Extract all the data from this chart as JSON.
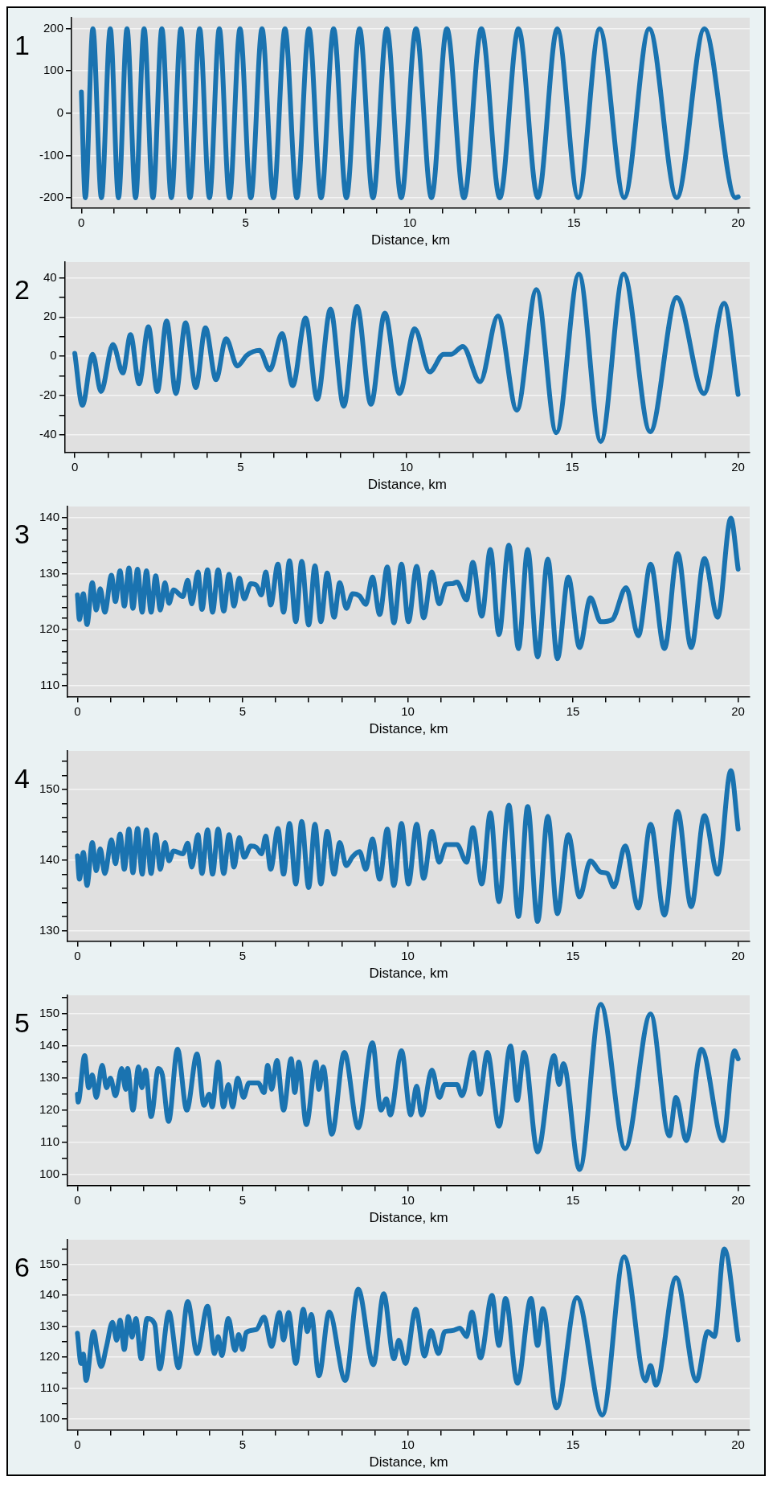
{
  "chart_data": [
    {
      "type": "line",
      "title": "1",
      "xlabel": "Distance, km",
      "grid": "y",
      "marker": "none",
      "line_style": "solid",
      "xlim": [
        -0.3,
        20.35
      ],
      "xticks": [
        0,
        {
          "value": 1,
          "label": null
        },
        {
          "value": 2,
          "label": null
        },
        {
          "value": 3,
          "label": null
        },
        {
          "value": 4,
          "label": null
        },
        5,
        {
          "value": 6,
          "label": null
        },
        {
          "value": 7,
          "label": null
        },
        {
          "value": 8,
          "label": null
        },
        {
          "value": 9,
          "label": null
        },
        10,
        {
          "value": 11,
          "label": null
        },
        {
          "value": 12,
          "label": null
        },
        {
          "value": 13,
          "label": null
        },
        {
          "value": 14,
          "label": null
        },
        15,
        {
          "value": 16,
          "label": null
        },
        {
          "value": 17,
          "label": null
        },
        {
          "value": 18,
          "label": null
        },
        {
          "value": 19,
          "label": null
        },
        20
      ],
      "ylim": [
        -224,
        226
      ],
      "yticks": [
        -200,
        -100,
        0,
        100,
        200
      ],
      "x": [
        0,
        0.12,
        0.35,
        0.61,
        0.88,
        1.13,
        1.39,
        1.65,
        1.91,
        2.18,
        2.45,
        2.74,
        3.03,
        3.31,
        3.6,
        3.9,
        4.2,
        4.51,
        4.83,
        5.16,
        5.5,
        5.85,
        6.2,
        6.56,
        6.93,
        7.3,
        7.68,
        8.07,
        8.47,
        8.88,
        9.3,
        9.74,
        10.19,
        10.66,
        11.13,
        11.65,
        12.18,
        12.74,
        13.31,
        13.9,
        14.49,
        15.13,
        15.78,
        16.53,
        17.29,
        18.13,
        18.97,
        19.92,
        20
      ],
      "series": [
        {
          "color": "#1a73b0",
          "values": [
            50,
            -200,
            200,
            -200,
            200,
            -200,
            200,
            -200,
            200,
            -200,
            200,
            -200,
            200,
            -200,
            200,
            -200,
            200,
            -200,
            200,
            -200,
            200,
            -200,
            200,
            -200,
            200,
            -200,
            200,
            -200,
            200,
            -200,
            200,
            -200,
            200,
            -200,
            200,
            -200,
            200,
            -200,
            200,
            -200,
            200,
            -200,
            200,
            -200,
            200,
            -200,
            200,
            -200,
            -198
          ]
        }
      ]
    },
    {
      "type": "line",
      "title": "2",
      "xlabel": "Distance, km",
      "grid": "y",
      "marker": "none",
      "line_style": "solid",
      "xlim": [
        -0.3,
        20.35
      ],
      "xticks": [
        0,
        {
          "value": 1,
          "label": null
        },
        {
          "value": 2,
          "label": null
        },
        {
          "value": 3,
          "label": null
        },
        {
          "value": 4,
          "label": null
        },
        5,
        {
          "value": 6,
          "label": null
        },
        {
          "value": 7,
          "label": null
        },
        {
          "value": 8,
          "label": null
        },
        {
          "value": 9,
          "label": null
        },
        10,
        {
          "value": 11,
          "label": null
        },
        {
          "value": 12,
          "label": null
        },
        {
          "value": 13,
          "label": null
        },
        {
          "value": 14,
          "label": null
        },
        15,
        {
          "value": 16,
          "label": null
        },
        {
          "value": 17,
          "label": null
        },
        {
          "value": 18,
          "label": null
        },
        {
          "value": 19,
          "label": null
        },
        20
      ],
      "ylim": [
        -49,
        48
      ],
      "yticks": [
        -40,
        {
          "value": -30,
          "label": null
        },
        -20,
        {
          "value": -10,
          "label": null
        },
        0,
        {
          "value": 10,
          "label": null
        },
        20,
        {
          "value": 30,
          "label": null
        },
        40
      ],
      "x": [
        0,
        0.23,
        0.54,
        0.79,
        1.15,
        1.45,
        1.68,
        1.94,
        2.22,
        2.49,
        2.77,
        3.05,
        3.34,
        3.65,
        3.94,
        4.26,
        4.56,
        4.9,
        5.19,
        5.57,
        5.88,
        6.25,
        6.57,
        6.96,
        7.31,
        7.71,
        8.11,
        8.51,
        8.93,
        9.35,
        9.79,
        10.25,
        10.7,
        11.12,
        11.35,
        11.7,
        12.22,
        12.76,
        13.33,
        13.92,
        14.52,
        15.2,
        15.86,
        16.55,
        17.35,
        18.15,
        18.97,
        19.58,
        20
      ],
      "series": [
        {
          "color": "#1a73b0",
          "values": [
            1.5,
            -25,
            1,
            -18,
            6,
            -8.5,
            11,
            -14,
            15,
            -18,
            18,
            -19,
            17,
            -16,
            14.5,
            -12,
            9,
            -5,
            0.5,
            3,
            -7,
            11.5,
            -15,
            19.5,
            -22,
            24,
            -25.5,
            25.5,
            -24.5,
            22,
            -19,
            14,
            -8,
            1,
            1,
            5,
            -13,
            20.5,
            -27.5,
            34,
            -39,
            42,
            -43.5,
            42,
            -38.5,
            30,
            -19,
            27,
            -19.5
          ]
        }
      ]
    },
    {
      "type": "line",
      "title": "3",
      "xlabel": "Distance, km",
      "grid": "y",
      "marker": "none",
      "line_style": "solid",
      "xlim": [
        -0.3,
        20.35
      ],
      "xticks": [
        0,
        {
          "value": 1,
          "label": null
        },
        {
          "value": 2,
          "label": null
        },
        {
          "value": 3,
          "label": null
        },
        {
          "value": 4,
          "label": null
        },
        5,
        {
          "value": 6,
          "label": null
        },
        {
          "value": 7,
          "label": null
        },
        {
          "value": 8,
          "label": null
        },
        {
          "value": 9,
          "label": null
        },
        10,
        {
          "value": 11,
          "label": null
        },
        {
          "value": 12,
          "label": null
        },
        {
          "value": 13,
          "label": null
        },
        {
          "value": 14,
          "label": null
        },
        15,
        {
          "value": 16,
          "label": null
        },
        {
          "value": 17,
          "label": null
        },
        {
          "value": 18,
          "label": null
        },
        {
          "value": 19,
          "label": null
        },
        20
      ],
      "ylim": [
        108,
        142
      ],
      "yticks": [
        110,
        {
          "value": 112,
          "label": null
        },
        {
          "value": 114,
          "label": null
        },
        {
          "value": 116,
          "label": null
        },
        {
          "value": 118,
          "label": null
        },
        120,
        {
          "value": 122,
          "label": null
        },
        {
          "value": 124,
          "label": null
        },
        {
          "value": 126,
          "label": null
        },
        {
          "value": 128,
          "label": null
        },
        130,
        {
          "value": 132,
          "label": null
        },
        {
          "value": 134,
          "label": null
        },
        {
          "value": 136,
          "label": null
        },
        {
          "value": 138,
          "label": null
        },
        140
      ],
      "x": [
        0,
        0.06,
        0.18,
        0.29,
        0.45,
        0.57,
        0.69,
        0.83,
        1.03,
        1.15,
        1.29,
        1.42,
        1.56,
        1.68,
        1.82,
        1.96,
        2.09,
        2.23,
        2.37,
        2.51,
        2.65,
        2.77,
        2.91,
        3.19,
        3.34,
        3.46,
        3.65,
        3.77,
        3.94,
        4.09,
        4.26,
        4.43,
        4.59,
        4.74,
        4.9,
        5.05,
        5.25,
        5.42,
        5.57,
        5.7,
        5.85,
        6.07,
        6.24,
        6.42,
        6.61,
        6.79,
        7,
        7.19,
        7.37,
        7.56,
        7.77,
        7.94,
        8.14,
        8.33,
        8.54,
        8.73,
        8.93,
        9.15,
        9.38,
        9.58,
        9.81,
        10.02,
        10.27,
        10.48,
        10.73,
        10.95,
        11.16,
        11.35,
        11.49,
        11.78,
        11.97,
        12.24,
        12.5,
        12.76,
        13.06,
        13.35,
        13.63,
        13.93,
        14.24,
        14.53,
        14.86,
        15.2,
        15.53,
        15.84,
        16.19,
        16.61,
        16.98,
        17.35,
        17.77,
        18.17,
        18.58,
        18.98,
        19.38,
        19.78,
        20
      ],
      "series": [
        {
          "color": "#1a73b0",
          "values": [
            126.2,
            121.8,
            126.4,
            120.9,
            128.4,
            123.5,
            127.3,
            123.1,
            129.7,
            125,
            130.5,
            124.2,
            131,
            123.8,
            130.8,
            123.1,
            130.5,
            123.1,
            129.6,
            123.5,
            128.4,
            124.7,
            127.1,
            125.9,
            128.8,
            124.6,
            130.3,
            123.6,
            130.7,
            123.1,
            130.7,
            123.3,
            129.9,
            124.2,
            129.2,
            125.5,
            128.2,
            127.9,
            126.2,
            130.3,
            124.4,
            131.7,
            123.1,
            132.3,
            121.4,
            132.2,
            120.8,
            131.4,
            121.4,
            130.1,
            122.2,
            128.4,
            123.8,
            126.4,
            126,
            124.5,
            129.4,
            122.7,
            131.2,
            121.2,
            131.7,
            121.4,
            131.3,
            122.1,
            130.3,
            124.6,
            128.1,
            128.2,
            128.5,
            125.3,
            132,
            122.4,
            134.3,
            119.1,
            135.1,
            116.6,
            134.3,
            115.1,
            132.6,
            114.8,
            129.4,
            116.8,
            125.7,
            121.4,
            121.8,
            127.5,
            118.9,
            131.7,
            116.6,
            133.6,
            116.8,
            132.7,
            122.2,
            139.9,
            130.8
          ]
        }
      ]
    },
    {
      "type": "line",
      "title": "4",
      "xlabel": "Distance, km",
      "grid": "y",
      "marker": "none",
      "line_style": "solid",
      "xlim": [
        -0.3,
        20.35
      ],
      "xticks": [
        0,
        {
          "value": 1,
          "label": null
        },
        {
          "value": 2,
          "label": null
        },
        {
          "value": 3,
          "label": null
        },
        {
          "value": 4,
          "label": null
        },
        5,
        {
          "value": 6,
          "label": null
        },
        {
          "value": 7,
          "label": null
        },
        {
          "value": 8,
          "label": null
        },
        {
          "value": 9,
          "label": null
        },
        10,
        {
          "value": 11,
          "label": null
        },
        {
          "value": 12,
          "label": null
        },
        {
          "value": 13,
          "label": null
        },
        {
          "value": 14,
          "label": null
        },
        15,
        {
          "value": 16,
          "label": null
        },
        {
          "value": 17,
          "label": null
        },
        {
          "value": 18,
          "label": null
        },
        {
          "value": 19,
          "label": null
        },
        20
      ],
      "ylim": [
        128.5,
        155.5
      ],
      "yticks": [
        130,
        {
          "value": 132,
          "label": null
        },
        {
          "value": 134,
          "label": null
        },
        {
          "value": 136,
          "label": null
        },
        {
          "value": 138,
          "label": null
        },
        140,
        {
          "value": 142,
          "label": null
        },
        {
          "value": 144,
          "label": null
        },
        {
          "value": 146,
          "label": null
        },
        {
          "value": 148,
          "label": null
        },
        150,
        {
          "value": 152,
          "label": null
        },
        {
          "value": 154,
          "label": null
        }
      ],
      "x": [
        0,
        0.06,
        0.18,
        0.29,
        0.45,
        0.57,
        0.69,
        0.83,
        1.03,
        1.15,
        1.29,
        1.42,
        1.56,
        1.68,
        1.82,
        1.96,
        2.09,
        2.23,
        2.37,
        2.51,
        2.65,
        2.77,
        2.91,
        3.19,
        3.34,
        3.46,
        3.65,
        3.77,
        3.94,
        4.09,
        4.26,
        4.43,
        4.59,
        4.74,
        4.9,
        5.05,
        5.25,
        5.42,
        5.57,
        5.7,
        5.85,
        6.07,
        6.24,
        6.42,
        6.61,
        6.79,
        7,
        7.19,
        7.37,
        7.56,
        7.77,
        7.94,
        8.14,
        8.33,
        8.54,
        8.73,
        8.93,
        9.15,
        9.38,
        9.58,
        9.81,
        10.02,
        10.27,
        10.48,
        10.73,
        10.95,
        11.16,
        11.49,
        11.78,
        11.97,
        12.24,
        12.5,
        12.76,
        13.06,
        13.35,
        13.63,
        13.93,
        14.24,
        14.53,
        14.86,
        15.2,
        15.53,
        15.84,
        16.04,
        16.24,
        16.58,
        16.98,
        17.35,
        17.77,
        18.17,
        18.58,
        18.98,
        19.38,
        19.78,
        20
      ],
      "series": [
        {
          "color": "#1a73b0",
          "values": [
            140.6,
            137.3,
            141.1,
            136.4,
            142.5,
            138.5,
            141.6,
            138.1,
            142.9,
            139.5,
            143.7,
            138.7,
            144.4,
            138.2,
            144.5,
            138,
            144.3,
            138.1,
            143.6,
            138.7,
            142.5,
            139.9,
            141.3,
            140.9,
            142.4,
            139,
            143.6,
            138.1,
            144.3,
            138,
            144.4,
            138.1,
            143.6,
            139,
            143.2,
            140.4,
            142,
            141.8,
            140.9,
            143.4,
            138.7,
            144.5,
            138,
            145.2,
            136.6,
            145.5,
            136.1,
            145.1,
            136.6,
            144.1,
            138,
            142.5,
            139.2,
            140.5,
            141.2,
            138.7,
            143,
            137.3,
            144.4,
            136.4,
            145.2,
            136.6,
            145.1,
            137.4,
            144.1,
            139.7,
            142.2,
            142.2,
            139.7,
            144.6,
            136.6,
            146.7,
            134.1,
            147.8,
            132,
            147.6,
            131.3,
            146.2,
            132.4,
            143.6,
            134.8,
            139.9,
            138.3,
            138.1,
            136.2,
            142,
            133.2,
            145.1,
            132.2,
            146.9,
            133.4,
            146.3,
            138,
            152.7,
            144.4
          ]
        }
      ]
    },
    {
      "type": "line",
      "title": "5",
      "xlabel": "Distance, km",
      "grid": "y",
      "marker": "none",
      "line_style": "solid",
      "xlim": [
        -0.3,
        20.35
      ],
      "xticks": [
        0,
        {
          "value": 1,
          "label": null
        },
        {
          "value": 2,
          "label": null
        },
        {
          "value": 3,
          "label": null
        },
        {
          "value": 4,
          "label": null
        },
        5,
        {
          "value": 6,
          "label": null
        },
        {
          "value": 7,
          "label": null
        },
        {
          "value": 8,
          "label": null
        },
        {
          "value": 9,
          "label": null
        },
        10,
        {
          "value": 11,
          "label": null
        },
        {
          "value": 12,
          "label": null
        },
        {
          "value": 13,
          "label": null
        },
        {
          "value": 14,
          "label": null
        },
        15,
        {
          "value": 16,
          "label": null
        },
        {
          "value": 17,
          "label": null
        },
        {
          "value": 18,
          "label": null
        },
        {
          "value": 19,
          "label": null
        },
        20
      ],
      "ylim": [
        96.5,
        155.8
      ],
      "yticks": [
        100,
        {
          "value": 105,
          "label": null
        },
        110,
        {
          "value": 115,
          "label": null
        },
        120,
        {
          "value": 125,
          "label": null
        },
        130,
        {
          "value": 135,
          "label": null
        },
        140,
        {
          "value": 145,
          "label": null
        },
        150,
        {
          "value": 155,
          "label": null
        }
      ],
      "x": [
        0,
        0.02,
        0.22,
        0.34,
        0.45,
        0.57,
        0.75,
        0.88,
        1,
        1.15,
        1.34,
        1.46,
        1.52,
        1.68,
        1.85,
        1.95,
        2.06,
        2.23,
        2.45,
        2.57,
        2.76,
        3.03,
        3.31,
        3.62,
        3.83,
        3.99,
        4.08,
        4.26,
        4.42,
        4.57,
        4.7,
        4.85,
        5.03,
        5.19,
        5.47,
        5.65,
        5.76,
        5.88,
        6.04,
        6.24,
        6.47,
        6.58,
        6.7,
        6.93,
        7.22,
        7.31,
        7.44,
        7.7,
        8.08,
        8.5,
        8.93,
        9.19,
        9.35,
        9.47,
        9.81,
        10.09,
        10.27,
        10.42,
        10.73,
        10.96,
        11.12,
        11.49,
        11.64,
        11.98,
        12.18,
        12.41,
        12.76,
        13.11,
        13.31,
        13.52,
        13.93,
        14.43,
        14.58,
        14.71,
        15.2,
        15.84,
        16.58,
        17.35,
        17.92,
        18.12,
        18.43,
        18.89,
        19.54,
        19.89,
        20
      ],
      "series": [
        {
          "color": "#1a73b0",
          "values": [
            125,
            122.5,
            137,
            127,
            131,
            124,
            134,
            127,
            130,
            124.5,
            133,
            126.5,
            133,
            120,
            133.5,
            127,
            132.5,
            118,
            133,
            131,
            116.5,
            139,
            120,
            137.5,
            121.5,
            125,
            121,
            135,
            121,
            128,
            121,
            130,
            124,
            128.5,
            128.5,
            125.5,
            134,
            126.5,
            135.5,
            120,
            136,
            125.5,
            135,
            115.5,
            135,
            126.5,
            133.5,
            112.5,
            138,
            114.5,
            141,
            120,
            123.5,
            118.5,
            138.5,
            118.5,
            127.5,
            118.5,
            132.5,
            124,
            128,
            128,
            124.5,
            138,
            125,
            138,
            115,
            140,
            123,
            138,
            107,
            137,
            128,
            134.5,
            101.5,
            153,
            108,
            150,
            112,
            124,
            110.5,
            139,
            110.5,
            138.5,
            136
          ]
        }
      ]
    },
    {
      "type": "line",
      "title": "6",
      "xlabel": "Distance, km",
      "grid": "y",
      "marker": "none",
      "line_style": "solid",
      "xlim": [
        -0.3,
        20.35
      ],
      "xticks": [
        0,
        {
          "value": 1,
          "label": null
        },
        {
          "value": 2,
          "label": null
        },
        {
          "value": 3,
          "label": null
        },
        {
          "value": 4,
          "label": null
        },
        5,
        {
          "value": 6,
          "label": null
        },
        {
          "value": 7,
          "label": null
        },
        {
          "value": 8,
          "label": null
        },
        {
          "value": 9,
          "label": null
        },
        10,
        {
          "value": 11,
          "label": null
        },
        {
          "value": 12,
          "label": null
        },
        {
          "value": 13,
          "label": null
        },
        {
          "value": 14,
          "label": null
        },
        15,
        {
          "value": 16,
          "label": null
        },
        {
          "value": 17,
          "label": null
        },
        {
          "value": 18,
          "label": null
        },
        {
          "value": 19,
          "label": null
        },
        20
      ],
      "ylim": [
        96.5,
        158
      ],
      "yticks": [
        100,
        {
          "value": 105,
          "label": null
        },
        110,
        {
          "value": 115,
          "label": null
        },
        120,
        {
          "value": 125,
          "label": null
        },
        130,
        {
          "value": 135,
          "label": null
        },
        140,
        {
          "value": 145,
          "label": null
        },
        150,
        {
          "value": 155,
          "label": null
        }
      ],
      "x": [
        0,
        0.11,
        0.18,
        0.26,
        0.49,
        0.6,
        0.72,
        0.88,
        1.06,
        1.19,
        1.29,
        1.42,
        1.54,
        1.65,
        1.77,
        1.93,
        2.11,
        2.34,
        2.49,
        2.77,
        3.06,
        3.34,
        3.62,
        3.94,
        4.15,
        4.26,
        4.37,
        4.57,
        4.77,
        4.88,
        5,
        5.11,
        5.42,
        5.65,
        5.88,
        6.11,
        6.24,
        6.39,
        6.61,
        6.84,
        6.96,
        7.08,
        7.31,
        7.62,
        8.11,
        8.5,
        8.96,
        9.27,
        9.58,
        9.73,
        9.93,
        10.24,
        10.51,
        10.7,
        10.93,
        11.12,
        11.35,
        11.58,
        11.78,
        11.94,
        12.2,
        12.55,
        12.76,
        12.96,
        13.32,
        13.73,
        13.93,
        14.09,
        14.5,
        15.12,
        15.89,
        16.55,
        17.2,
        17.35,
        17.51,
        18.12,
        18.74,
        19.08,
        19.28,
        19.58,
        20
      ],
      "series": [
        {
          "color": "#1a73b0",
          "values": [
            127.8,
            118,
            121,
            112.5,
            128.3,
            122,
            117,
            123.5,
            131.3,
            125.5,
            132,
            122.5,
            133.2,
            126.5,
            132.5,
            119.5,
            132.5,
            130.7,
            116.3,
            134.6,
            116.6,
            138,
            121.2,
            136.5,
            121.2,
            126.7,
            120.6,
            132.5,
            122.2,
            127.3,
            122.5,
            128,
            129,
            133,
            123.5,
            134.5,
            125.6,
            134.5,
            118,
            135.5,
            128.3,
            133.8,
            114,
            134.6,
            112.5,
            142,
            117.6,
            140.5,
            119.5,
            125.5,
            118,
            135.5,
            120.4,
            128.6,
            121.2,
            128.3,
            128.6,
            129.4,
            126.7,
            134.6,
            119.8,
            140,
            123.8,
            139,
            111.6,
            139,
            123.8,
            135.7,
            103.6,
            139.3,
            101.3,
            152.5,
            112.4,
            117.3,
            111,
            145.7,
            112.4,
            128.3,
            126.7,
            155,
            125.6
          ]
        }
      ]
    }
  ]
}
